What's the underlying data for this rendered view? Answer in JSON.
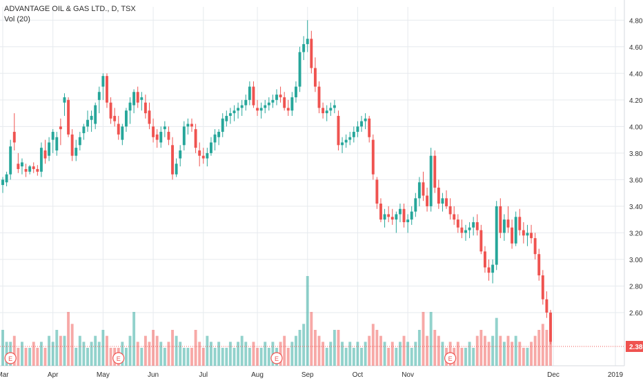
{
  "legend": {
    "title": "ADVANTAGE OIL & GAS LTD., D, TSX",
    "volume": "Vol (20)"
  },
  "colors": {
    "up": "#26a69a",
    "down": "#ef5350",
    "grid": "#e6eaee",
    "axis_text": "#2f2f2f",
    "last_price_bg": "#ef5350"
  },
  "chart_data": {
    "type": "candlestick",
    "title": "ADVANTAGE OIL & GAS LTD., D, TSX",
    "price_axis": {
      "ticks": [
        "2.60",
        "2.80",
        "3.00",
        "3.20",
        "3.40",
        "3.60",
        "3.80",
        "4.00",
        "4.20",
        "4.40",
        "4.60",
        "4.80"
      ],
      "ylim": [
        2.2,
        4.9
      ]
    },
    "time_axis": {
      "labels": [
        "Mar",
        "Apr",
        "May",
        "Jun",
        "Jul",
        "Aug",
        "Sep",
        "Oct",
        "Nov",
        "Dec",
        "2019"
      ]
    },
    "last_price": "2.38",
    "earnings_markers": [
      "E",
      "E",
      "E",
      "E"
    ],
    "candles": [
      [
        3.56,
        3.62,
        3.5,
        3.6,
        6
      ],
      [
        3.58,
        3.66,
        3.55,
        3.64,
        4
      ],
      [
        3.64,
        3.9,
        3.6,
        3.85,
        4
      ],
      [
        3.96,
        4.1,
        3.82,
        3.88,
        5
      ],
      [
        3.72,
        3.8,
        3.65,
        3.68,
        3
      ],
      [
        3.7,
        3.76,
        3.64,
        3.73,
        4
      ],
      [
        3.68,
        3.72,
        3.62,
        3.66,
        3
      ],
      [
        3.66,
        3.71,
        3.64,
        3.7,
        3
      ],
      [
        3.7,
        3.73,
        3.65,
        3.68,
        4
      ],
      [
        3.68,
        3.71,
        3.63,
        3.66,
        3
      ],
      [
        3.66,
        3.88,
        3.62,
        3.84,
        4
      ],
      [
        3.82,
        3.9,
        3.72,
        3.76,
        3
      ],
      [
        3.78,
        3.92,
        3.74,
        3.88,
        5
      ],
      [
        3.9,
        3.98,
        3.8,
        3.96,
        4
      ],
      [
        3.82,
        3.96,
        3.78,
        3.92,
        6
      ],
      [
        4.0,
        4.06,
        3.86,
        3.98,
        5
      ],
      [
        4.18,
        4.25,
        4.08,
        4.22,
        5
      ],
      [
        4.2,
        4.22,
        3.92,
        3.94,
        9
      ],
      [
        3.94,
        3.98,
        3.74,
        3.78,
        7
      ],
      [
        3.78,
        3.9,
        3.74,
        3.84,
        3
      ],
      [
        3.86,
        3.96,
        3.82,
        3.92,
        5
      ],
      [
        3.95,
        4.02,
        3.9,
        4.0,
        4
      ],
      [
        4.0,
        4.12,
        3.96,
        4.05,
        3
      ],
      [
        4.05,
        4.12,
        3.96,
        4.08,
        4
      ],
      [
        4.02,
        4.18,
        3.98,
        4.16,
        5
      ],
      [
        4.2,
        4.3,
        4.1,
        4.26,
        4
      ],
      [
        4.3,
        4.4,
        4.2,
        4.38,
        6
      ],
      [
        4.38,
        4.4,
        4.14,
        4.18,
        5
      ],
      [
        4.18,
        4.22,
        4.02,
        4.06,
        3
      ],
      [
        4.08,
        4.14,
        4.0,
        4.04,
        3
      ],
      [
        4.02,
        4.08,
        3.9,
        3.94,
        3
      ],
      [
        3.9,
        4.02,
        3.86,
        4.0,
        4
      ],
      [
        4.0,
        4.14,
        3.96,
        4.12,
        3
      ],
      [
        4.12,
        4.22,
        4.02,
        4.18,
        5
      ],
      [
        4.16,
        4.28,
        4.1,
        4.26,
        9
      ],
      [
        4.26,
        4.3,
        4.14,
        4.18,
        4
      ],
      [
        4.2,
        4.26,
        4.12,
        4.22,
        3
      ],
      [
        4.18,
        4.24,
        4.06,
        4.1,
        5
      ],
      [
        4.12,
        4.18,
        3.98,
        4.02,
        4
      ],
      [
        4.0,
        4.06,
        3.88,
        3.92,
        6
      ],
      [
        3.94,
        3.98,
        3.84,
        3.9,
        5
      ],
      [
        3.88,
        4.0,
        3.84,
        3.96,
        4
      ],
      [
        3.98,
        4.04,
        3.92,
        4.0,
        3
      ],
      [
        3.96,
        4.0,
        3.86,
        3.9,
        4
      ],
      [
        3.86,
        3.92,
        3.6,
        3.64,
        6
      ],
      [
        3.64,
        3.76,
        3.62,
        3.72,
        5
      ],
      [
        3.76,
        3.86,
        3.7,
        3.82,
        4
      ],
      [
        3.86,
        4.04,
        3.82,
        4.0,
        3
      ],
      [
        4.0,
        4.06,
        3.94,
        4.02,
        3
      ],
      [
        4.02,
        4.06,
        3.96,
        4.0,
        3
      ],
      [
        3.98,
        4.02,
        3.8,
        3.84,
        6
      ],
      [
        3.82,
        3.88,
        3.7,
        3.78,
        4
      ],
      [
        3.78,
        3.84,
        3.72,
        3.76,
        3
      ],
      [
        3.76,
        3.84,
        3.7,
        3.8,
        5
      ],
      [
        3.8,
        3.92,
        3.78,
        3.88,
        4
      ],
      [
        3.88,
        3.98,
        3.82,
        3.94,
        3
      ],
      [
        3.92,
        3.98,
        3.86,
        3.96,
        4
      ],
      [
        3.96,
        4.1,
        3.92,
        4.06,
        3
      ],
      [
        4.04,
        4.12,
        4.0,
        4.08,
        3
      ],
      [
        4.08,
        4.14,
        4.02,
        4.1,
        4
      ],
      [
        4.1,
        4.16,
        4.04,
        4.12,
        3
      ],
      [
        4.12,
        4.18,
        4.06,
        4.14,
        4
      ],
      [
        4.14,
        4.2,
        4.08,
        4.16,
        5
      ],
      [
        4.16,
        4.24,
        4.12,
        4.2,
        4
      ],
      [
        4.2,
        4.34,
        4.16,
        4.3,
        3
      ],
      [
        4.3,
        4.34,
        4.14,
        4.16,
        4
      ],
      [
        4.14,
        4.2,
        4.08,
        4.12,
        3
      ],
      [
        4.12,
        4.18,
        4.06,
        4.14,
        3
      ],
      [
        4.14,
        4.2,
        4.1,
        4.16,
        4
      ],
      [
        4.16,
        4.22,
        4.12,
        4.18,
        3
      ],
      [
        4.18,
        4.24,
        4.14,
        4.2,
        4
      ],
      [
        4.2,
        4.28,
        4.16,
        4.24,
        3
      ],
      [
        4.24,
        4.3,
        4.18,
        4.22,
        4
      ],
      [
        4.22,
        4.26,
        4.12,
        4.14,
        5
      ],
      [
        4.14,
        4.2,
        4.08,
        4.12,
        3
      ],
      [
        4.12,
        4.26,
        4.08,
        4.22,
        4
      ],
      [
        4.22,
        4.34,
        4.18,
        4.3,
        5
      ],
      [
        4.3,
        4.6,
        4.26,
        4.56,
        6
      ],
      [
        4.56,
        4.68,
        4.5,
        4.62,
        7
      ],
      [
        4.62,
        4.8,
        4.56,
        4.66,
        15
      ],
      [
        4.66,
        4.72,
        4.4,
        4.44,
        9
      ],
      [
        4.44,
        4.52,
        4.26,
        4.3,
        6
      ],
      [
        4.3,
        4.34,
        4.1,
        4.14,
        5
      ],
      [
        4.14,
        4.18,
        4.06,
        4.1,
        4
      ],
      [
        4.1,
        4.16,
        4.04,
        4.12,
        3
      ],
      [
        4.12,
        4.18,
        4.08,
        4.14,
        4
      ],
      [
        4.14,
        4.2,
        4.1,
        4.16,
        6
      ],
      [
        4.08,
        4.12,
        3.82,
        3.86,
        6
      ],
      [
        3.86,
        3.92,
        3.8,
        3.88,
        4
      ],
      [
        3.88,
        3.94,
        3.84,
        3.9,
        3
      ],
      [
        3.9,
        3.96,
        3.86,
        3.92,
        4
      ],
      [
        3.92,
        4.0,
        3.88,
        3.96,
        3
      ],
      [
        3.96,
        4.04,
        3.92,
        4.0,
        4
      ],
      [
        4.0,
        4.08,
        3.96,
        4.04,
        3
      ],
      [
        4.04,
        4.1,
        3.98,
        4.06,
        4
      ],
      [
        4.06,
        4.08,
        3.88,
        3.92,
        5
      ],
      [
        3.9,
        3.94,
        3.6,
        3.64,
        7
      ],
      [
        3.6,
        3.62,
        3.38,
        3.42,
        6
      ],
      [
        3.42,
        3.46,
        3.28,
        3.3,
        5
      ],
      [
        3.3,
        3.38,
        3.24,
        3.34,
        4
      ],
      [
        3.34,
        3.4,
        3.28,
        3.32,
        3
      ],
      [
        3.32,
        3.38,
        3.26,
        3.3,
        4
      ],
      [
        3.3,
        3.36,
        3.2,
        3.34,
        3
      ],
      [
        3.34,
        3.42,
        3.28,
        3.38,
        4
      ],
      [
        3.38,
        3.42,
        3.24,
        3.28,
        5
      ],
      [
        3.28,
        3.34,
        3.2,
        3.3,
        4
      ],
      [
        3.3,
        3.4,
        3.26,
        3.36,
        3
      ],
      [
        3.36,
        3.5,
        3.32,
        3.46,
        4
      ],
      [
        3.46,
        3.62,
        3.4,
        3.58,
        6
      ],
      [
        3.58,
        3.66,
        3.44,
        3.48,
        9
      ],
      [
        3.48,
        3.54,
        3.36,
        3.4,
        5
      ],
      [
        3.4,
        3.84,
        3.36,
        3.78,
        9
      ],
      [
        3.78,
        3.82,
        3.5,
        3.54,
        6
      ],
      [
        3.54,
        3.6,
        3.38,
        3.42,
        5
      ],
      [
        3.42,
        3.5,
        3.36,
        3.46,
        4
      ],
      [
        3.46,
        3.52,
        3.38,
        3.4,
        3
      ],
      [
        3.4,
        3.46,
        3.3,
        3.34,
        4
      ],
      [
        3.34,
        3.4,
        3.26,
        3.3,
        3
      ],
      [
        3.3,
        3.34,
        3.2,
        3.24,
        4
      ],
      [
        3.24,
        3.3,
        3.16,
        3.2,
        3
      ],
      [
        3.2,
        3.26,
        3.14,
        3.22,
        3
      ],
      [
        3.22,
        3.28,
        3.16,
        3.24,
        4
      ],
      [
        3.24,
        3.32,
        3.18,
        3.28,
        3
      ],
      [
        3.28,
        3.34,
        3.18,
        3.22,
        5
      ],
      [
        3.22,
        3.26,
        3.04,
        3.06,
        6
      ],
      [
        3.06,
        3.1,
        2.9,
        2.94,
        5
      ],
      [
        2.94,
        3.0,
        2.84,
        2.9,
        4
      ],
      [
        2.9,
        3.0,
        2.82,
        2.96,
        5
      ],
      [
        2.96,
        3.44,
        2.92,
        3.4,
        8
      ],
      [
        3.4,
        3.46,
        3.16,
        3.2,
        5
      ],
      [
        3.2,
        3.34,
        3.14,
        3.3,
        4
      ],
      [
        3.3,
        3.4,
        3.2,
        3.24,
        5
      ],
      [
        3.24,
        3.3,
        3.08,
        3.12,
        4
      ],
      [
        3.12,
        3.36,
        3.1,
        3.32,
        5
      ],
      [
        3.32,
        3.38,
        3.18,
        3.22,
        4
      ],
      [
        3.22,
        3.28,
        3.12,
        3.18,
        3
      ],
      [
        3.18,
        3.26,
        3.1,
        3.2,
        3
      ],
      [
        3.2,
        3.26,
        3.12,
        3.16,
        4
      ],
      [
        3.16,
        3.2,
        3.0,
        3.04,
        5
      ],
      [
        3.04,
        3.08,
        2.84,
        2.88,
        6
      ],
      [
        2.88,
        2.92,
        2.66,
        2.7,
        7
      ],
      [
        2.7,
        2.76,
        2.56,
        2.6,
        6
      ],
      [
        2.6,
        2.62,
        2.36,
        2.38,
        8
      ]
    ]
  }
}
